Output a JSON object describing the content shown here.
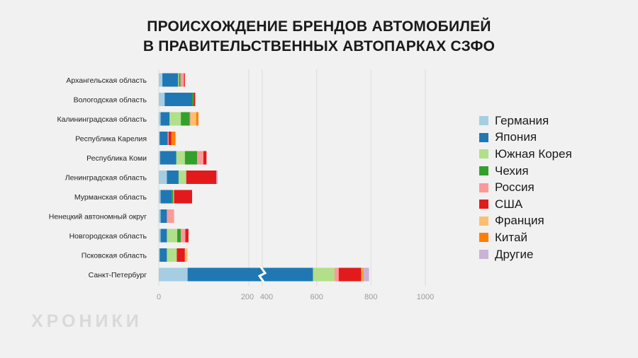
{
  "page": {
    "title_line1": "ПРОИСХОЖДЕНИЕ БРЕНДОВ АВТОМОБИЛЕЙ",
    "title_line2": "В ПРАВИТЕЛЬСТВЕННЫХ АВТОПАРКАХ СЗФО",
    "watermark": "ХРОНИКИ"
  },
  "chart_data": {
    "type": "bar",
    "orientation": "horizontal",
    "stacked": true,
    "title": "ПРОИСХОЖДЕНИЕ БРЕНДОВ АВТОМОБИЛЕЙ В ПРАВИТЕЛЬСТВЕННЫХ АВТОПАРКАХ СЗФО",
    "axis_break": {
      "from": 200,
      "to": 400
    },
    "xlim": [
      0,
      1000
    ],
    "x_ticks": [
      "0",
      "200",
      "400",
      "600",
      "800",
      "1000"
    ],
    "x_tick_values": [
      0,
      200,
      400,
      600,
      800,
      1000
    ],
    "grid": "vertical",
    "legend_position": "right",
    "categories": [
      "Архангельская область",
      "Вологодская область",
      "Калининградская область",
      "Республика Карелия",
      "Республика Коми",
      "Ленинградская область",
      "Мурманская область",
      "Ненецкий автономный округ",
      "Новгородская область",
      "Псковская область",
      "Санкт-Петербург"
    ],
    "series": [
      {
        "name": "Германия",
        "color": "#a6cee3",
        "values": [
          8,
          13,
          4,
          2,
          3,
          18,
          4,
          4,
          4,
          2,
          64
        ]
      },
      {
        "name": "Япония",
        "color": "#1f78b4",
        "values": [
          35,
          61,
          20,
          18,
          36,
          26,
          25,
          14,
          14,
          16,
          435
        ]
      },
      {
        "name": "Южная Корея",
        "color": "#b2df8a",
        "values": [
          2,
          0,
          25,
          0,
          19,
          17,
          0,
          0,
          23,
          22,
          115
        ]
      },
      {
        "name": "Чехия",
        "color": "#33a02c",
        "values": [
          3,
          4,
          20,
          0,
          27,
          0,
          3,
          0,
          8,
          0,
          0
        ]
      },
      {
        "name": "Россия",
        "color": "#fb9a99",
        "values": [
          8,
          0,
          2,
          2,
          14,
          0,
          2,
          16,
          10,
          0,
          22
        ]
      },
      {
        "name": "США",
        "color": "#e31a1c",
        "values": [
          2,
          3,
          0,
          6,
          7,
          67,
          40,
          0,
          7,
          18,
          120
        ]
      },
      {
        "name": "Франция",
        "color": "#fdbf6f",
        "values": [
          0,
          0,
          12,
          0,
          0,
          0,
          0,
          0,
          0,
          6,
          6
        ]
      },
      {
        "name": "Китай",
        "color": "#ff7f00",
        "values": [
          0,
          0,
          5,
          9,
          0,
          0,
          0,
          0,
          0,
          0,
          5
        ]
      },
      {
        "name": "Другие",
        "color": "#cab2d6",
        "values": [
          0,
          0,
          0,
          0,
          0,
          3,
          0,
          0,
          0,
          0,
          30
        ]
      }
    ]
  }
}
